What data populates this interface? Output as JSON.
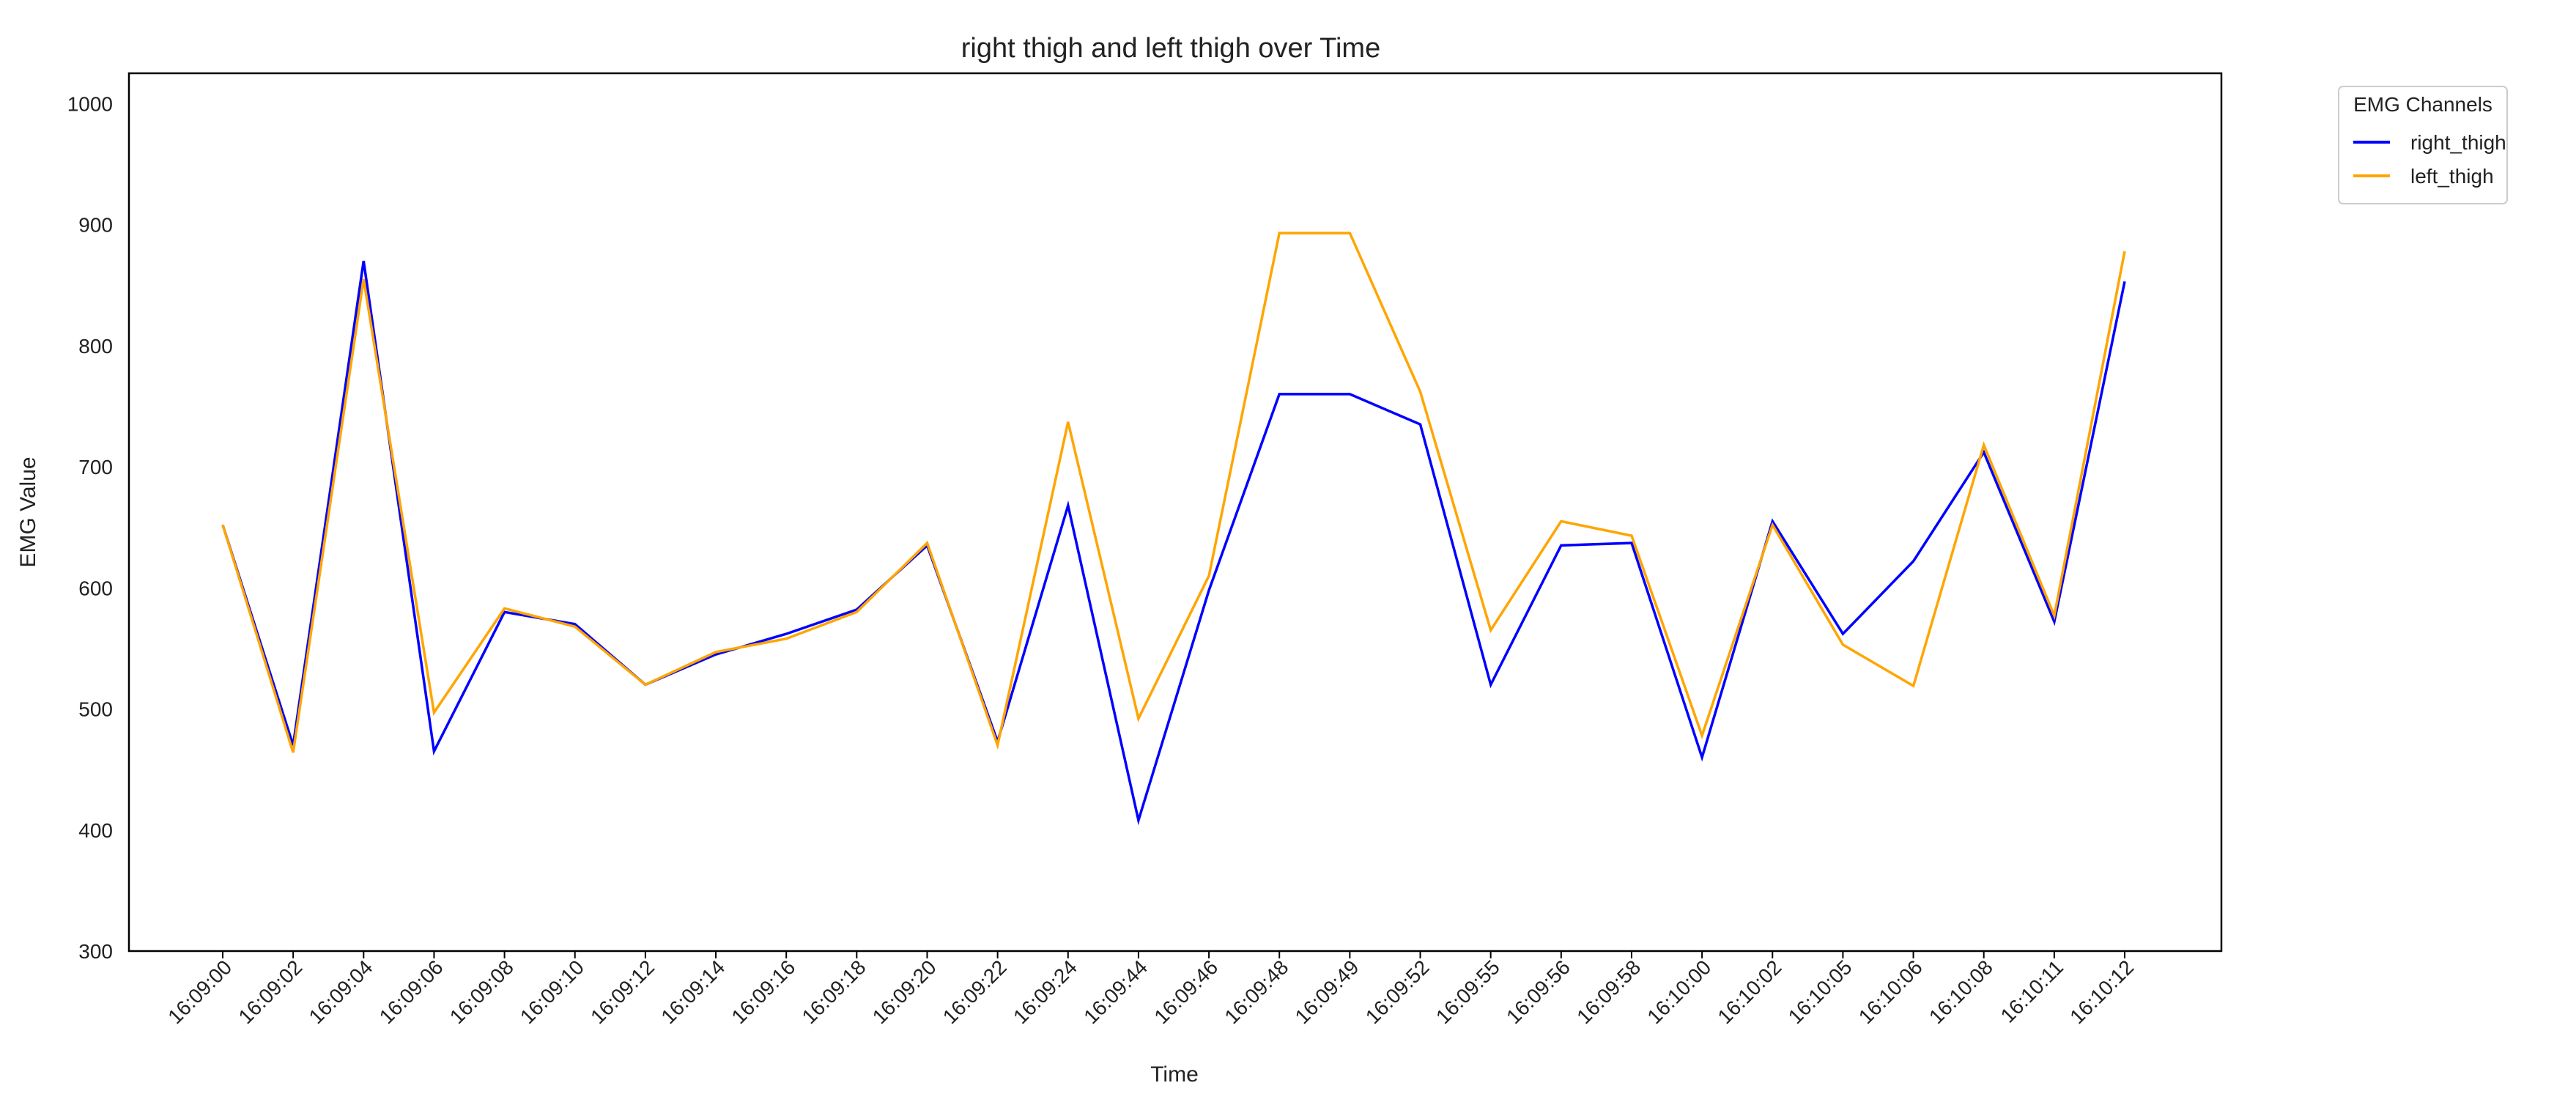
{
  "chart_data": {
    "type": "line",
    "title": "right thigh and left thigh over Time",
    "xlabel": "Time",
    "ylabel": "EMG Value",
    "ylim": [
      300,
      1025
    ],
    "yticks": [
      300,
      400,
      500,
      600,
      700,
      800,
      900,
      1000
    ],
    "grid": false,
    "legend": {
      "title": "EMG Channels",
      "placement": "outside-top-right"
    },
    "categories": [
      "16:09:00",
      "16:09:02",
      "16:09:04",
      "16:09:06",
      "16:09:08",
      "16:09:10",
      "16:09:12",
      "16:09:14",
      "16:09:16",
      "16:09:18",
      "16:09:20",
      "16:09:22",
      "16:09:24",
      "16:09:44",
      "16:09:46",
      "16:09:48",
      "16:09:49",
      "16:09:52",
      "16:09:55",
      "16:09:56",
      "16:09:58",
      "16:10:00",
      "16:10:02",
      "16:10:05",
      "16:10:06",
      "16:10:08",
      "16:10:11",
      "16:10:12"
    ],
    "series": [
      {
        "name": "right_thigh",
        "color": "#0000ff",
        "values": [
          652,
          470,
          870,
          465,
          580,
          570,
          520,
          545,
          562,
          582,
          635,
          473,
          668,
          408,
          598,
          760,
          760,
          735,
          520,
          635,
          637,
          460,
          655,
          562,
          622,
          712,
          572,
          853
        ]
      },
      {
        "name": "left_thigh",
        "color": "#ffa500",
        "values": [
          652,
          464,
          855,
          497,
          583,
          568,
          520,
          547,
          558,
          580,
          637,
          470,
          737,
          492,
          610,
          893,
          893,
          762,
          565,
          655,
          643,
          478,
          652,
          553,
          519,
          718,
          577,
          878
        ]
      }
    ]
  }
}
